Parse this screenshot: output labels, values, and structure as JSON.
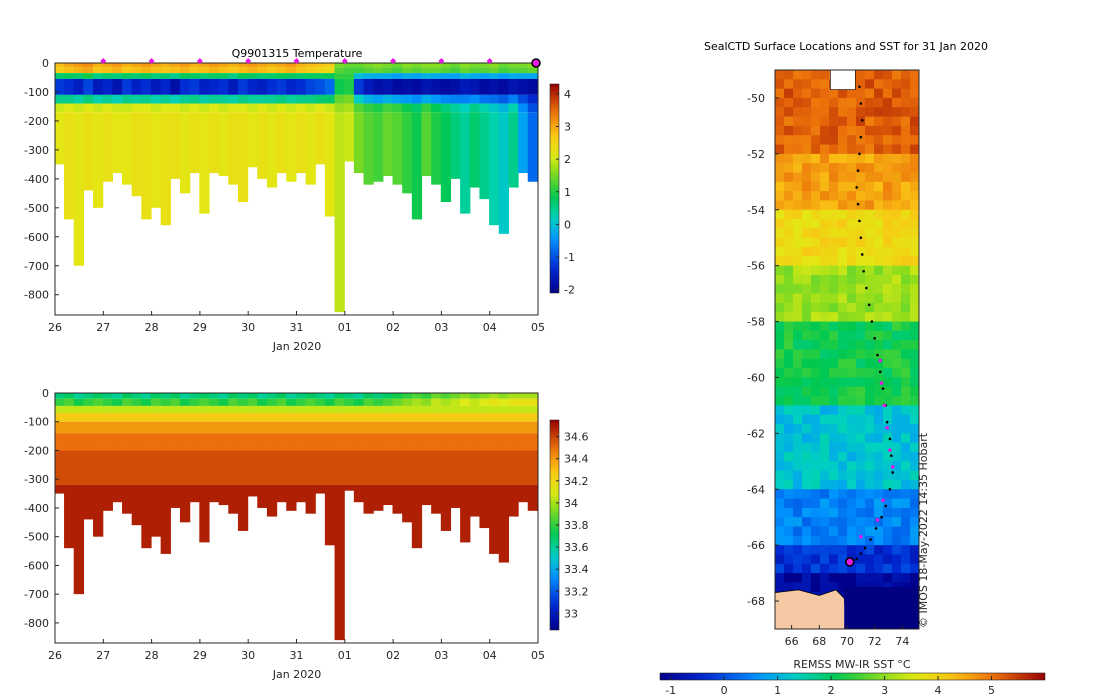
{
  "chart_data": [
    {
      "type": "heatmap",
      "title": "Q9901315  Temperature",
      "xlabel": "Jan 2020",
      "ylabel": "",
      "x_ticks": [
        "26",
        "27",
        "28",
        "29",
        "30",
        "31",
        "01",
        "02",
        "03",
        "04",
        "05"
      ],
      "y_ticks": [
        0,
        -100,
        -200,
        -300,
        -400,
        -500,
        -600,
        -700,
        -800
      ],
      "xlim": [
        26,
        36
      ],
      "ylim": [
        -870,
        0
      ],
      "colorbar": {
        "ticks": [
          -2,
          -1,
          0,
          1,
          2,
          3,
          4
        ],
        "range": [
          -2.1,
          4.3
        ]
      },
      "surface_markers_day": [
        27,
        28,
        29,
        30,
        31,
        32,
        33,
        34,
        35
      ],
      "current_position_day": 36,
      "profile_days": [
        26.2,
        26.4,
        26.6,
        26.8,
        27.0,
        27.2,
        27.4,
        27.6,
        27.8,
        28.0,
        28.2,
        28.4,
        28.6,
        28.8,
        29.0,
        29.2,
        29.4,
        29.6,
        29.8,
        30.0,
        30.2,
        30.4,
        30.6,
        30.8,
        31.0,
        31.2,
        31.4,
        31.6,
        31.8,
        32.0,
        32.2,
        32.4,
        32.6,
        32.8,
        33.0,
        33.2,
        33.4,
        33.6,
        33.8,
        34.0,
        34.2,
        34.4,
        34.6,
        34.8,
        35.0,
        35.2,
        35.4,
        35.6,
        35.8,
        36.0
      ],
      "profile_depths": [
        350,
        540,
        700,
        440,
        500,
        410,
        380,
        420,
        460,
        540,
        500,
        560,
        400,
        450,
        380,
        520,
        380,
        390,
        420,
        480,
        360,
        400,
        430,
        380,
        410,
        380,
        420,
        350,
        530,
        860,
        340,
        380,
        420,
        410,
        390,
        420,
        450,
        540,
        390,
        420,
        480,
        400,
        520,
        430,
        470,
        560,
        590,
        430,
        380,
        410
      ],
      "profile_temps": [
        2.2,
        2.3,
        2.2,
        2.3,
        2.2,
        2.3,
        2.2,
        2.2,
        2.3,
        2.3,
        2.2,
        2.3,
        2.3,
        2.2,
        2.3,
        2.2,
        2.3,
        2.2,
        2.3,
        2.3,
        2.2,
        2.3,
        2.2,
        2.3,
        2.2,
        2.3,
        2.2,
        2.3,
        2.2,
        1.9,
        2.0,
        1.5,
        1.3,
        1.2,
        1.4,
        1.3,
        1.1,
        0.9,
        1.3,
        1.0,
        0.8,
        0.6,
        0.4,
        0.7,
        0.5,
        0.3,
        0.1,
        0.5,
        -0.3,
        -0.8
      ],
      "surface_temps": [
        2.6,
        2.8,
        2.9,
        3.0,
        2.7,
        2.8,
        2.9,
        2.7,
        2.8,
        2.9,
        2.8,
        2.7,
        2.8,
        2.9,
        2.7,
        2.8,
        2.9,
        2.8,
        2.7,
        2.8,
        2.9,
        2.8,
        2.7,
        2.8,
        2.9,
        2.7,
        2.6,
        2.5,
        2.4,
        1.3,
        1.2,
        1.2,
        1.3,
        1.4,
        1.3,
        1.2,
        1.4,
        1.3,
        1.4,
        1.4,
        1.3,
        1.2,
        1.4,
        1.3,
        1.3,
        1.4,
        1.2,
        1.3,
        1.3,
        1.4
      ],
      "min_layer_temps": [
        -1.2,
        -1.3,
        -1.5,
        -1.1,
        -1.6,
        -1.4,
        -1.7,
        -1.2,
        -1.5,
        -1.3,
        -1.6,
        -1.4,
        -1.8,
        -1.3,
        -1.2,
        -1.5,
        -1.4,
        -1.3,
        -1.6,
        -1.2,
        -1.4,
        -1.5,
        -1.3,
        -1.2,
        -1.4,
        -1.3,
        -1.1,
        -1.0,
        -0.8,
        0.9,
        1.0,
        -1.2,
        -1.6,
        -1.8,
        -1.7,
        -1.9,
        -1.8,
        -1.9,
        -1.7,
        -1.8,
        -1.9,
        -1.8,
        -1.6,
        -1.7,
        -1.9,
        -1.8,
        -1.9,
        -1.7,
        -1.8,
        -1.9
      ]
    },
    {
      "type": "heatmap",
      "title": "",
      "xlabel": "Jan 2020",
      "ylabel": "",
      "x_ticks": [
        "26",
        "27",
        "28",
        "29",
        "30",
        "31",
        "01",
        "02",
        "03",
        "04",
        "05"
      ],
      "y_ticks": [
        0,
        -100,
        -200,
        -300,
        -400,
        -500,
        -600,
        -700,
        -800
      ],
      "xlim": [
        26,
        36
      ],
      "ylim": [
        -870,
        0
      ],
      "colorbar": {
        "ticks": [
          33,
          33.2,
          33.4,
          33.6,
          33.8,
          34,
          34.2,
          34.4,
          34.6
        ],
        "range": [
          32.85,
          34.75
        ]
      },
      "profile_days": [
        26.2,
        26.4,
        26.6,
        26.8,
        27.0,
        27.2,
        27.4,
        27.6,
        27.8,
        28.0,
        28.2,
        28.4,
        28.6,
        28.8,
        29.0,
        29.2,
        29.4,
        29.6,
        29.8,
        30.0,
        30.2,
        30.4,
        30.6,
        30.8,
        31.0,
        31.2,
        31.4,
        31.6,
        31.8,
        32.0,
        32.2,
        32.4,
        32.6,
        32.8,
        33.0,
        33.2,
        33.4,
        33.6,
        33.8,
        34.0,
        34.2,
        34.4,
        34.6,
        34.8,
        35.0,
        35.2,
        35.4,
        35.6,
        35.8,
        36.0
      ],
      "profile_depths": [
        350,
        540,
        700,
        440,
        500,
        410,
        380,
        420,
        460,
        540,
        500,
        560,
        400,
        450,
        380,
        520,
        380,
        390,
        420,
        480,
        360,
        400,
        430,
        380,
        410,
        380,
        420,
        350,
        530,
        860,
        340,
        380,
        420,
        410,
        390,
        420,
        450,
        540,
        390,
        420,
        480,
        400,
        520,
        430,
        470,
        560,
        590,
        430,
        380,
        410
      ],
      "surface_sal": [
        33.65,
        33.7,
        33.6,
        33.65,
        33.7,
        33.65,
        33.6,
        33.7,
        33.65,
        33.6,
        33.7,
        33.65,
        33.7,
        33.6,
        33.65,
        33.7,
        33.65,
        33.6,
        33.7,
        33.65,
        33.7,
        33.6,
        33.65,
        33.7,
        33.6,
        33.65,
        33.7,
        33.65,
        33.6,
        33.7,
        33.65,
        33.6,
        33.7,
        33.65,
        33.7,
        33.75,
        33.8,
        33.85,
        33.8,
        33.9,
        33.85,
        33.9,
        33.95,
        33.9,
        33.95,
        34.0,
        33.95,
        34.0,
        34.0,
        34.0
      ],
      "deep_sal": [
        34.7,
        34.7,
        34.7,
        34.7,
        34.7,
        34.7,
        34.7,
        34.7,
        34.7,
        34.7,
        34.7,
        34.7,
        34.7,
        34.7,
        34.7,
        34.7,
        34.7,
        34.7,
        34.7,
        34.7,
        34.7,
        34.7,
        34.7,
        34.7,
        34.7,
        34.7,
        34.7,
        34.7,
        34.7,
        34.7,
        34.7,
        34.7,
        34.7,
        34.7,
        34.7,
        34.7,
        34.7,
        34.7,
        34.7,
        34.7,
        34.7,
        34.7,
        34.7,
        34.7,
        34.7,
        34.7,
        34.7,
        34.7,
        34.7,
        34.7
      ]
    },
    {
      "type": "map",
      "title": "SealCTD Surface Locations and SST for 31 Jan 2020",
      "xlabel": "",
      "colorbar_label": "REMSS MW-IR SST °C",
      "x_ticks": [
        66,
        68,
        70,
        72,
        74
      ],
      "y_ticks": [
        -50,
        -52,
        -54,
        -56,
        -58,
        -60,
        -62,
        -64,
        -66,
        -68
      ],
      "xlim": [
        64.8,
        75.2
      ],
      "ylim": [
        -69.0,
        -49.0
      ],
      "colorbar": {
        "ticks": [
          -1,
          0,
          1,
          2,
          3,
          4,
          5
        ],
        "range": [
          -1.2,
          6.0
        ]
      },
      "track_lon": [
        70.9,
        71.0,
        71.1,
        71.0,
        70.9,
        70.8,
        70.7,
        70.8,
        70.9,
        71.0,
        71.1,
        71.2,
        71.4,
        71.6,
        71.8,
        72.0,
        72.2,
        72.4,
        72.6,
        72.8,
        72.9,
        73.1,
        73.2,
        73.3,
        73.1,
        72.8,
        72.5,
        72.1,
        71.7,
        71.3,
        71.0,
        70.7,
        70.4,
        70.1
      ],
      "track_lat": [
        -49.6,
        -50.2,
        -50.8,
        -51.4,
        -52.0,
        -52.6,
        -53.2,
        -53.8,
        -54.4,
        -55.0,
        -55.6,
        -56.2,
        -56.8,
        -57.4,
        -58.0,
        -58.6,
        -59.2,
        -59.8,
        -60.4,
        -61.0,
        -61.6,
        -62.2,
        -62.8,
        -63.4,
        -64.0,
        -64.6,
        -65.0,
        -65.4,
        -65.8,
        -66.1,
        -66.3,
        -66.5,
        -66.6,
        -66.7
      ],
      "pink_lon": [
        72.4,
        72.5,
        72.7,
        72.9,
        73.1,
        73.3,
        72.6,
        72.2,
        71.0
      ],
      "pink_lat": [
        -59.4,
        -60.2,
        -61.0,
        -61.8,
        -62.6,
        -63.2,
        -64.4,
        -65.1,
        -65.7
      ],
      "current_lon": 70.2,
      "current_lat": -66.6,
      "stamp": "© IMOS 18-May-2022 14:35 Hobart"
    }
  ]
}
